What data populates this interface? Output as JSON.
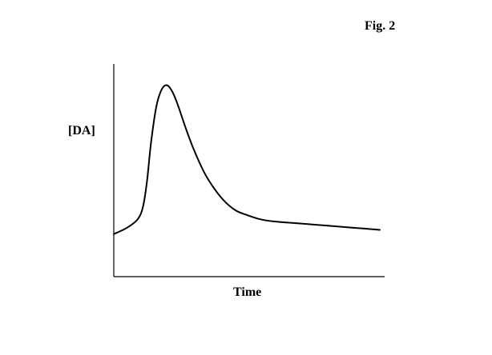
{
  "figure_label": "Fig. 2",
  "chart_data": {
    "type": "line",
    "title": "",
    "xlabel": "Time",
    "ylabel": "[DA]",
    "xlim": [
      0,
      100
    ],
    "ylim": [
      0,
      100
    ],
    "grid": false,
    "legend": "none",
    "line_color": "#000000",
    "series": [
      {
        "x": [
          0,
          5,
          9,
          11,
          12.5,
          14,
          16,
          18,
          20,
          22,
          24,
          27,
          30,
          34,
          38,
          42,
          46,
          50,
          55,
          60,
          70,
          80,
          90,
          100
        ],
        "y": [
          20,
          23,
          27,
          33,
          45,
          63,
          80,
          88,
          90,
          87,
          81,
          70,
          60,
          49,
          41,
          35,
          31,
          29,
          27,
          26,
          25,
          24,
          23,
          22
        ]
      }
    ]
  }
}
